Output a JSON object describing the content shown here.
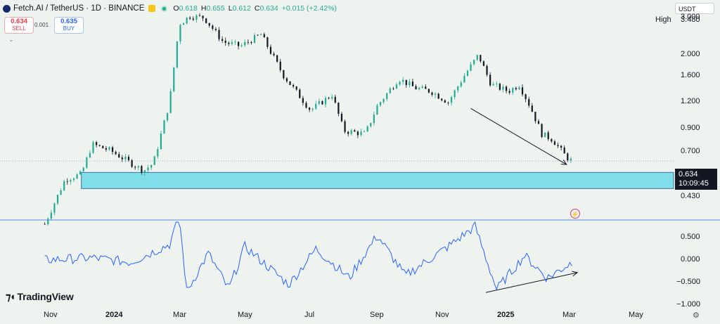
{
  "header": {
    "symbol": "Fetch.AI / TetherUS · 1D · BINANCE",
    "ohlc": [
      {
        "k": "O",
        "v": "0.618"
      },
      {
        "k": "H",
        "v": "0.655"
      },
      {
        "k": "L",
        "v": "0.612"
      },
      {
        "k": "C",
        "v": "0.634"
      },
      {
        "k": "",
        "v": "+0.015 (+2.42%)"
      }
    ]
  },
  "trade": {
    "sell_price": "0.634",
    "sell_label": "SELL",
    "spread": "0.001",
    "buy_price": "0.635",
    "buy_label": "BUY"
  },
  "currency": "USDT",
  "high": {
    "label": "High",
    "value": "3.480"
  },
  "price_axis": {
    "labels": [
      {
        "t": "3.000",
        "v": 3.0
      },
      {
        "t": "2.000",
        "v": 2.0
      },
      {
        "t": "1.600",
        "v": 1.6
      },
      {
        "t": "1.200",
        "v": 1.2
      },
      {
        "t": "0.900",
        "v": 0.9
      },
      {
        "t": "0.700",
        "v": 0.7
      },
      {
        "t": "0.430",
        "v": 0.43
      }
    ]
  },
  "current": {
    "price": "0.634",
    "countdown": "10:09:45"
  },
  "osc_axis": {
    "labels": [
      {
        "t": "0.500",
        "v": 0.5
      },
      {
        "t": "0.000",
        "v": 0.0
      },
      {
        "t": "−0.500",
        "v": -0.5
      },
      {
        "t": "−1.000",
        "v": -1.0
      }
    ]
  },
  "time_axis": [
    {
      "t": "Nov",
      "bold": false
    },
    {
      "t": "2024",
      "bold": true
    },
    {
      "t": "Mar",
      "bold": false
    },
    {
      "t": "May",
      "bold": false
    },
    {
      "t": "Jul",
      "bold": false
    },
    {
      "t": "Sep",
      "bold": false
    },
    {
      "t": "Nov",
      "bold": false
    },
    {
      "t": "2025",
      "bold": true
    },
    {
      "t": "Mar",
      "bold": false
    },
    {
      "t": "May",
      "bold": false
    }
  ],
  "brand": "TradingView",
  "colors": {
    "up": "#22ab94",
    "down": "#131722",
    "osc": "#2962ff",
    "zone": "#80deea"
  },
  "chart_data": {
    "type": "candlestick",
    "log_scale": true,
    "price_trend": [
      [
        "2023-11-01",
        0.32
      ],
      [
        "2023-11-20",
        0.52
      ],
      [
        "2023-12-05",
        0.55
      ],
      [
        "2023-12-15",
        0.76
      ],
      [
        "2024-01-01",
        0.71
      ],
      [
        "2024-01-20",
        0.62
      ],
      [
        "2024-02-01",
        0.57
      ],
      [
        "2024-02-10",
        0.62
      ],
      [
        "2024-02-25",
        1.2
      ],
      [
        "2024-03-05",
        2.8
      ],
      [
        "2024-03-15",
        3.05
      ],
      [
        "2024-03-28",
        3.0
      ],
      [
        "2024-04-15",
        2.3
      ],
      [
        "2024-05-01",
        2.2
      ],
      [
        "2024-05-20",
        2.5
      ],
      [
        "2024-06-10",
        1.6
      ],
      [
        "2024-07-05",
        1.1
      ],
      [
        "2024-07-25",
        1.3
      ],
      [
        "2024-08-05",
        0.88
      ],
      [
        "2024-08-25",
        0.85
      ],
      [
        "2024-09-05",
        1.15
      ],
      [
        "2024-09-25",
        1.55
      ],
      [
        "2024-10-10",
        1.4
      ],
      [
        "2024-10-25",
        1.35
      ],
      [
        "2024-11-10",
        1.2
      ],
      [
        "2024-11-25",
        1.6
      ],
      [
        "2024-12-08",
        2.0
      ],
      [
        "2024-12-20",
        1.45
      ],
      [
        "2025-01-05",
        1.35
      ],
      [
        "2025-01-15",
        1.45
      ],
      [
        "2025-01-25",
        1.15
      ],
      [
        "2025-02-05",
        0.85
      ],
      [
        "2025-02-15",
        0.8
      ],
      [
        "2025-02-28",
        0.66
      ],
      [
        "2025-03-05",
        0.634
      ]
    ],
    "support_zone": {
      "low": 0.47,
      "high": 0.56
    },
    "current_price": 0.634,
    "oscillator_trend": [
      [
        "2023-11-01",
        0.0
      ],
      [
        "2023-12-15",
        0.05
      ],
      [
        "2024-01-20",
        -0.05
      ],
      [
        "2024-02-25",
        0.35
      ],
      [
        "2024-03-05",
        0.95
      ],
      [
        "2024-03-12",
        -0.7
      ],
      [
        "2024-04-01",
        0.15
      ],
      [
        "2024-04-20",
        -0.65
      ],
      [
        "2024-05-05",
        0.3
      ],
      [
        "2024-06-15",
        -0.55
      ],
      [
        "2024-07-10",
        0.25
      ],
      [
        "2024-08-10",
        -0.4
      ],
      [
        "2024-09-05",
        0.55
      ],
      [
        "2024-10-01",
        -0.35
      ],
      [
        "2024-11-10",
        0.3
      ],
      [
        "2024-12-05",
        0.75
      ],
      [
        "2024-12-25",
        -0.65
      ],
      [
        "2025-01-20",
        0.1
      ],
      [
        "2025-02-10",
        -0.4
      ],
      [
        "2025-03-05",
        -0.05
      ]
    ],
    "annotations": [
      {
        "type": "arrow",
        "pane": "price",
        "from": [
          "2024-12-01",
          1.12
        ],
        "to": [
          "2025-02-28",
          0.61
        ]
      },
      {
        "type": "arrow",
        "pane": "oscillator",
        "from": [
          "2024-12-15",
          -0.72
        ],
        "to": [
          "2025-03-10",
          -0.28
        ]
      }
    ]
  }
}
